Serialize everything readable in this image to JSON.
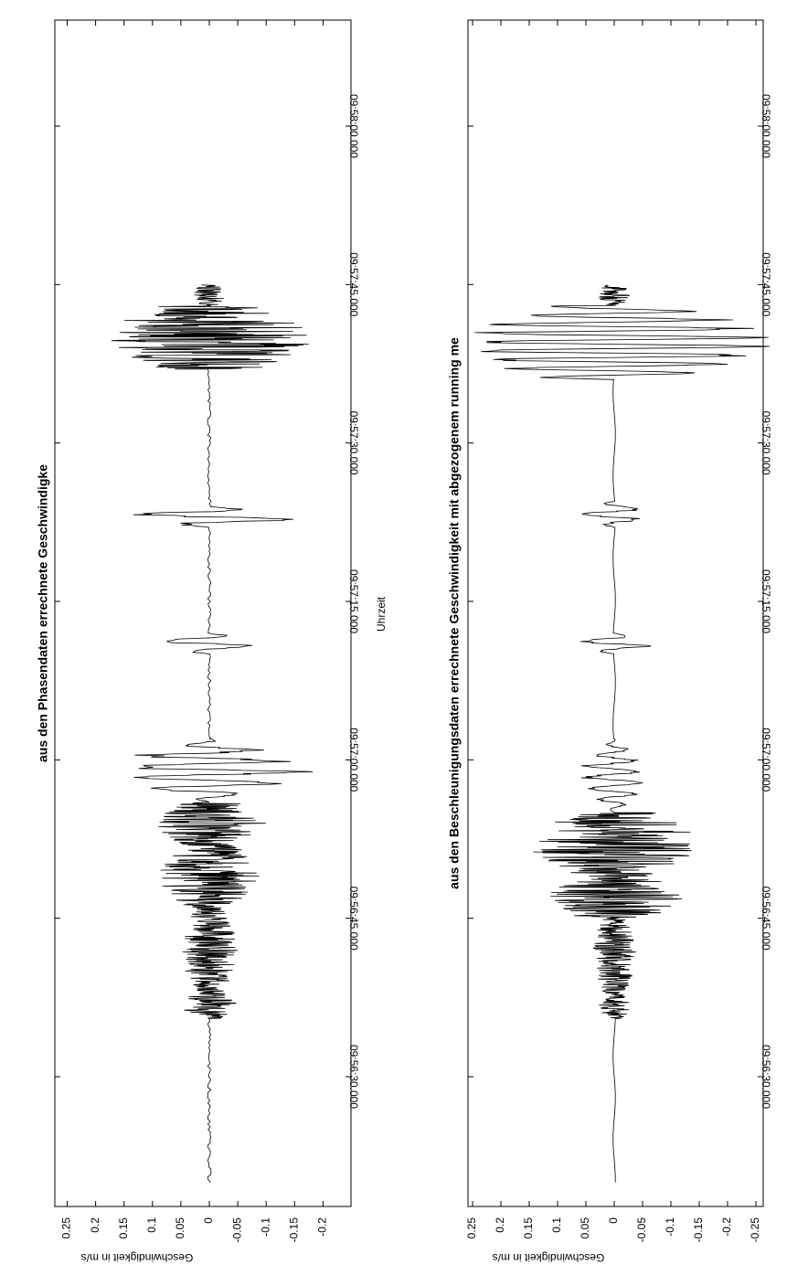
{
  "chart_data": [
    {
      "type": "line",
      "title": "aus den Phasendaten errechnete Geschwindigke",
      "xlabel": "Uhrzeit",
      "ylabel": "Geschwindigkeit in m/s",
      "xlim_seconds": [
        -18,
        96
      ],
      "x_tick_labels": [
        "09:56:30.000",
        "09:56:45.000",
        "09:57:00.000",
        "09:57:15.000",
        "09:57:30.000",
        "09:57:45.000",
        "09:58:00.000"
      ],
      "ylim": [
        -0.28,
        0.28
      ],
      "y_ticks": [
        0.25,
        0.2,
        0.15,
        0.1,
        0.05,
        0,
        -0.05,
        -0.1,
        -0.15,
        -0.2
      ],
      "y_tick_labels": [
        "0.25",
        "0.2",
        "0.15",
        "0.1",
        "0.05",
        "0",
        "-0.05",
        "-0.1",
        "-0.15",
        "-0.2"
      ],
      "grid": false,
      "series": [
        {
          "segments": [
            {
              "t": [
                -10,
                5.5
              ],
              "amp": 0.003,
              "kind": "noise"
            },
            {
              "t": [
                5.5,
                8
              ],
              "amp": 0.05,
              "kind": "burst"
            },
            {
              "t": [
                8,
                16
              ],
              "amp": 0.05,
              "kind": "burst"
            },
            {
              "t": [
                16,
                22
              ],
              "amp": 0.09,
              "kind": "burst"
            },
            {
              "t": [
                22,
                26
              ],
              "amp": 0.1,
              "kind": "burst"
            },
            {
              "t": [
                26,
                32
              ],
              "amp": 0.17,
              "kind": "slow"
            },
            {
              "t": [
                32,
                40
              ],
              "amp": 0.003,
              "kind": "noise"
            },
            {
              "t": [
                40,
                42
              ],
              "amp": 0.1,
              "kind": "slow"
            },
            {
              "t": [
                42,
                52
              ],
              "amp": 0.003,
              "kind": "noise"
            },
            {
              "t": [
                52,
                54
              ],
              "amp": 0.16,
              "kind": "slow"
            },
            {
              "t": [
                54,
                67
              ],
              "amp": 0.003,
              "kind": "noise"
            },
            {
              "t": [
                67,
                73
              ],
              "amp": 0.18,
              "kind": "burst"
            },
            {
              "t": [
                73,
                75
              ],
              "amp": 0.03,
              "kind": "burst"
            }
          ]
        }
      ]
    },
    {
      "type": "line",
      "title": "aus den Beschleunigungsdaten errechnete Geschwindigkeit mit abgezogenem running me",
      "xlabel": "",
      "ylabel": "Geschwindigkeit in m/s",
      "xlim_seconds": [
        -18,
        96
      ],
      "x_tick_labels": [
        "09:56:30.000",
        "09:56:45.000",
        "09:57:00.000",
        "09:57:15.000",
        "09:57:30.000",
        "09:57:45.000",
        "09:58:00.000"
      ],
      "ylim": [
        -0.3,
        0.3
      ],
      "y_ticks": [
        0.25,
        0.2,
        0.15,
        0.1,
        0.05,
        0,
        -0.05,
        -0.1,
        -0.15,
        -0.2,
        -0.25
      ],
      "y_tick_labels": [
        "0.25",
        "0.2",
        "0.15",
        "0.1",
        "0.05",
        "0",
        "-0.05",
        "-0.1",
        "-0.15",
        "-0.2",
        "-0.25"
      ],
      "grid": false,
      "series": [
        {
          "segments": [
            {
              "t": [
                -10,
                5.5
              ],
              "amp": 0.002,
              "kind": "smooth"
            },
            {
              "t": [
                5.5,
                8
              ],
              "amp": 0.03,
              "kind": "burst"
            },
            {
              "t": [
                8,
                15
              ],
              "amp": 0.04,
              "kind": "burst"
            },
            {
              "t": [
                15,
                19
              ],
              "amp": 0.12,
              "kind": "burst"
            },
            {
              "t": [
                19,
                25
              ],
              "amp": 0.15,
              "kind": "burst"
            },
            {
              "t": [
                25,
                32
              ],
              "amp": 0.06,
              "kind": "slow"
            },
            {
              "t": [
                32,
                40
              ],
              "amp": 0.002,
              "kind": "smooth"
            },
            {
              "t": [
                40,
                42
              ],
              "amp": 0.07,
              "kind": "slow"
            },
            {
              "t": [
                42,
                52
              ],
              "amp": 0.002,
              "kind": "smooth"
            },
            {
              "t": [
                52,
                54.5
              ],
              "amp": 0.07,
              "kind": "slow"
            },
            {
              "t": [
                54.5,
                66
              ],
              "amp": 0.002,
              "kind": "smooth"
            },
            {
              "t": [
                66,
                73
              ],
              "amp": 0.28,
              "kind": "big"
            },
            {
              "t": [
                73,
                75
              ],
              "amp": 0.03,
              "kind": "burst"
            }
          ]
        }
      ]
    }
  ]
}
